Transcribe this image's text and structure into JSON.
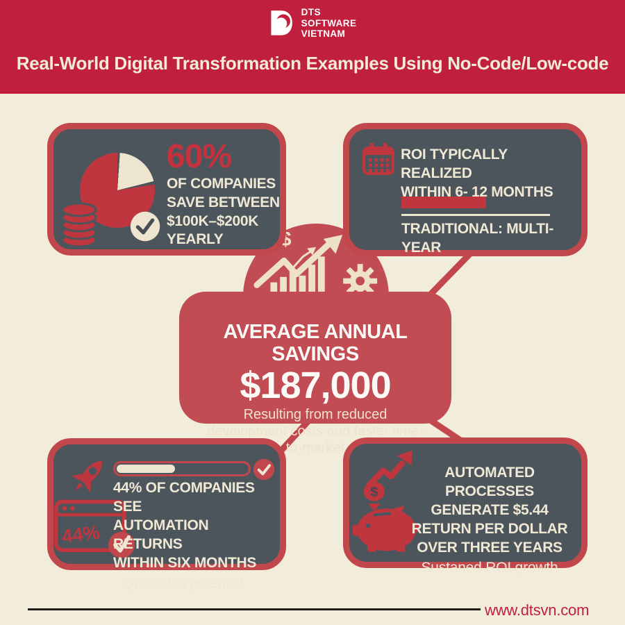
{
  "header": {
    "logo": {
      "line1": "DTS",
      "line2": "SOFTWARE",
      "line3": "VIETNAM"
    },
    "title": "Real-World Digital Transformation Examples Using No-Code/Low-code"
  },
  "panels": {
    "top_left": {
      "stat": "60%",
      "line1": "OF COMPANIES",
      "line2": "SAVE BETWEEN",
      "line3": "$100K–$200K YEARLY"
    },
    "top_right": {
      "line1": "ROI TYPICALLY REALIZED",
      "line2": "WITHIN 6- 12 MONTHS",
      "comparison": "TRADITIONAL: MULTI-YEAR"
    },
    "center": {
      "title": "AVERAGE ANNUAL SAVINGS",
      "amount": "$187,000",
      "subtitle": "Resulting from reduced development costs and faster time-to-market"
    },
    "bottom_left": {
      "line1": "44% OF COMPANIES SEE",
      "line2": "AUTOMATION RETURNS",
      "line3": "WITHIN SIX MONTHS",
      "note": "Quick-win potential",
      "badge": "44%",
      "progress_percent": 44
    },
    "bottom_right": {
      "line1": "AUTOMATED PROCESSES",
      "line2": "GENERATE $5.44",
      "line3": "RETURN PER DOLLAR",
      "line4": "OVER THREE YEARS",
      "note": "Sustaned ROI growth"
    }
  },
  "footer": {
    "website": "www.dtsvn.com"
  },
  "glyphs": {
    "dollar": "$"
  },
  "colors": {
    "header_red": "#C01F3E",
    "border_red": "#C2474C",
    "icon_red": "#C0363F",
    "center_red": "#C24C53",
    "panel_gray": "#4D555C",
    "cream": "#EFE8D5",
    "background": "#F2ECDB"
  }
}
